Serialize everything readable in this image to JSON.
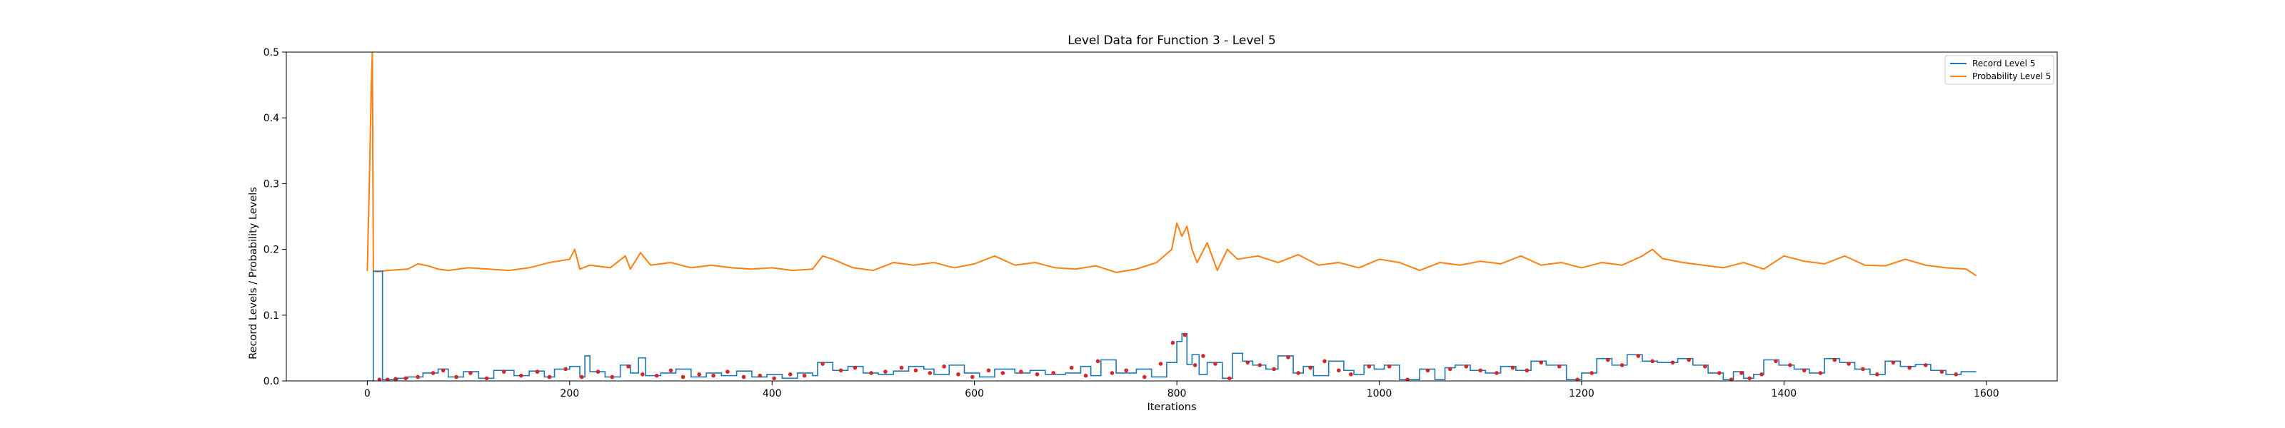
{
  "chart_data": {
    "type": "line",
    "title": "Level Data for Function 3 - Level 5",
    "xlabel": "Iterations",
    "ylabel": "Record Levels / Probability Levels",
    "xlim": [
      -80,
      1670
    ],
    "ylim": [
      0,
      0.5
    ],
    "x_ticks": [
      0,
      200,
      400,
      600,
      800,
      1000,
      1200,
      1400,
      1600
    ],
    "y_ticks": [
      0.0,
      0.1,
      0.2,
      0.3,
      0.4,
      0.5
    ],
    "x_tick_labels": [
      "0",
      "200",
      "400",
      "600",
      "800",
      "1000",
      "1200",
      "1400",
      "1600"
    ],
    "y_tick_labels": [
      "0.0",
      "0.1",
      "0.2",
      "0.3",
      "0.4",
      "0.5"
    ],
    "grid": false,
    "legend_position": "top-right",
    "series": [
      {
        "name": "Record Level 5",
        "color": "#1f77b4",
        "style": "step",
        "x": [
          0,
          5,
          6,
          15,
          30,
          40,
          55,
          70,
          80,
          95,
          110,
          125,
          145,
          160,
          175,
          185,
          200,
          210,
          215,
          220,
          235,
          250,
          260,
          268,
          275,
          290,
          305,
          320,
          335,
          350,
          365,
          380,
          395,
          410,
          425,
          440,
          445,
          460,
          475,
          490,
          505,
          520,
          535,
          550,
          560,
          575,
          590,
          605,
          620,
          640,
          655,
          670,
          690,
          705,
          715,
          725,
          740,
          760,
          775,
          790,
          800,
          805,
          810,
          815,
          822,
          830,
          845,
          855,
          865,
          875,
          888,
          900,
          915,
          925,
          935,
          950,
          965,
          975,
          985,
          995,
          1005,
          1020,
          1040,
          1055,
          1065,
          1075,
          1090,
          1105,
          1120,
          1135,
          1150,
          1165,
          1185,
          1200,
          1215,
          1230,
          1245,
          1260,
          1275,
          1295,
          1310,
          1325,
          1340,
          1350,
          1360,
          1370,
          1380,
          1395,
          1410,
          1425,
          1440,
          1455,
          1470,
          1485,
          1500,
          1515,
          1530,
          1545,
          1560,
          1575,
          1590
        ],
        "y": [
          0,
          0,
          0.167,
          0.002,
          0.004,
          0.006,
          0.012,
          0.018,
          0.006,
          0.014,
          0.004,
          0.016,
          0.008,
          0.015,
          0.006,
          0.018,
          0.022,
          0.006,
          0.038,
          0.014,
          0.006,
          0.024,
          0.012,
          0.035,
          0.008,
          0.012,
          0.018,
          0.006,
          0.012,
          0.008,
          0.015,
          0.006,
          0.01,
          0.004,
          0.012,
          0.008,
          0.028,
          0.016,
          0.022,
          0.012,
          0.01,
          0.015,
          0.022,
          0.018,
          0.01,
          0.024,
          0.012,
          0.006,
          0.018,
          0.012,
          0.016,
          0.01,
          0.012,
          0.022,
          0.008,
          0.032,
          0.012,
          0.018,
          0.006,
          0.028,
          0.06,
          0.072,
          0.025,
          0.04,
          0.01,
          0.028,
          0.004,
          0.042,
          0.03,
          0.024,
          0.018,
          0.038,
          0.012,
          0.022,
          0.008,
          0.03,
          0.016,
          0.01,
          0.024,
          0.018,
          0.024,
          0.002,
          0.018,
          0.002,
          0.02,
          0.024,
          0.016,
          0.012,
          0.022,
          0.016,
          0.03,
          0.024,
          0.002,
          0.012,
          0.034,
          0.024,
          0.04,
          0.03,
          0.028,
          0.034,
          0.024,
          0.012,
          0.002,
          0.014,
          0.004,
          0.01,
          0.032,
          0.024,
          0.018,
          0.012,
          0.034,
          0.028,
          0.018,
          0.01,
          0.03,
          0.022,
          0.025,
          0.016,
          0.01,
          0.014,
          0.014
        ]
      },
      {
        "name": "Probability Level 5",
        "color": "#ff7f0e",
        "style": "line",
        "x": [
          0,
          2,
          4,
          5,
          6,
          10,
          20,
          40,
          50,
          60,
          70,
          80,
          100,
          120,
          140,
          160,
          180,
          200,
          205,
          210,
          220,
          240,
          255,
          260,
          270,
          280,
          300,
          320,
          340,
          360,
          380,
          400,
          420,
          440,
          450,
          460,
          480,
          500,
          520,
          540,
          560,
          580,
          600,
          620,
          640,
          660,
          680,
          700,
          720,
          740,
          760,
          780,
          795,
          800,
          805,
          810,
          815,
          820,
          830,
          840,
          850,
          860,
          880,
          900,
          920,
          940,
          960,
          980,
          1000,
          1020,
          1040,
          1060,
          1080,
          1100,
          1120,
          1140,
          1160,
          1180,
          1200,
          1220,
          1240,
          1260,
          1270,
          1280,
          1300,
          1320,
          1340,
          1360,
          1380,
          1400,
          1420,
          1440,
          1460,
          1480,
          1500,
          1520,
          1540,
          1560,
          1580,
          1590
        ],
        "y": [
          0.167,
          0.3,
          0.45,
          0.5,
          0.167,
          0.166,
          0.168,
          0.17,
          0.178,
          0.175,
          0.17,
          0.168,
          0.172,
          0.17,
          0.168,
          0.172,
          0.18,
          0.185,
          0.2,
          0.17,
          0.176,
          0.172,
          0.19,
          0.17,
          0.195,
          0.176,
          0.18,
          0.172,
          0.176,
          0.172,
          0.17,
          0.172,
          0.168,
          0.17,
          0.19,
          0.185,
          0.172,
          0.168,
          0.18,
          0.176,
          0.18,
          0.172,
          0.178,
          0.19,
          0.176,
          0.18,
          0.172,
          0.17,
          0.175,
          0.165,
          0.17,
          0.18,
          0.2,
          0.24,
          0.22,
          0.235,
          0.2,
          0.18,
          0.21,
          0.168,
          0.2,
          0.185,
          0.19,
          0.18,
          0.192,
          0.176,
          0.18,
          0.172,
          0.185,
          0.18,
          0.168,
          0.18,
          0.176,
          0.182,
          0.178,
          0.19,
          0.176,
          0.18,
          0.172,
          0.18,
          0.176,
          0.19,
          0.2,
          0.186,
          0.18,
          0.176,
          0.172,
          0.18,
          0.17,
          0.19,
          0.182,
          0.178,
          0.19,
          0.176,
          0.175,
          0.185,
          0.176,
          0.172,
          0.17,
          0.16
        ]
      }
    ],
    "markers": {
      "color": "#d62728",
      "x": [
        12,
        20,
        28,
        38,
        50,
        65,
        75,
        88,
        102,
        118,
        135,
        152,
        168,
        180,
        196,
        212,
        228,
        242,
        258,
        272,
        286,
        300,
        312,
        328,
        342,
        356,
        372,
        388,
        402,
        418,
        432,
        450,
        468,
        482,
        498,
        512,
        528,
        542,
        556,
        570,
        584,
        598,
        614,
        628,
        646,
        662,
        678,
        696,
        710,
        722,
        736,
        750,
        768,
        784,
        796,
        808,
        818,
        826,
        838,
        852,
        870,
        882,
        896,
        910,
        920,
        932,
        946,
        960,
        972,
        990,
        1010,
        1028,
        1048,
        1070,
        1086,
        1100,
        1116,
        1132,
        1146,
        1160,
        1178,
        1196,
        1210,
        1226,
        1240,
        1256,
        1270,
        1290,
        1306,
        1322,
        1336,
        1348,
        1358,
        1366,
        1378,
        1392,
        1406,
        1420,
        1436,
        1450,
        1464,
        1478,
        1492,
        1508,
        1524,
        1540,
        1556,
        1570
      ],
      "y": [
        0.002,
        0.002,
        0.003,
        0.004,
        0.006,
        0.012,
        0.016,
        0.006,
        0.012,
        0.004,
        0.014,
        0.008,
        0.014,
        0.006,
        0.018,
        0.006,
        0.014,
        0.006,
        0.022,
        0.01,
        0.008,
        0.016,
        0.006,
        0.01,
        0.008,
        0.014,
        0.006,
        0.008,
        0.004,
        0.01,
        0.008,
        0.026,
        0.016,
        0.02,
        0.012,
        0.014,
        0.02,
        0.016,
        0.012,
        0.022,
        0.01,
        0.006,
        0.016,
        0.012,
        0.014,
        0.01,
        0.012,
        0.02,
        0.008,
        0.03,
        0.012,
        0.016,
        0.006,
        0.026,
        0.058,
        0.07,
        0.024,
        0.038,
        0.026,
        0.004,
        0.028,
        0.024,
        0.018,
        0.036,
        0.012,
        0.02,
        0.03,
        0.016,
        0.01,
        0.022,
        0.022,
        0.002,
        0.016,
        0.018,
        0.022,
        0.016,
        0.012,
        0.02,
        0.016,
        0.028,
        0.022,
        0.002,
        0.012,
        0.032,
        0.024,
        0.038,
        0.03,
        0.028,
        0.032,
        0.022,
        0.012,
        0.002,
        0.012,
        0.004,
        0.01,
        0.03,
        0.024,
        0.016,
        0.012,
        0.032,
        0.026,
        0.018,
        0.01,
        0.028,
        0.02,
        0.024,
        0.014,
        0.01
      ]
    }
  }
}
